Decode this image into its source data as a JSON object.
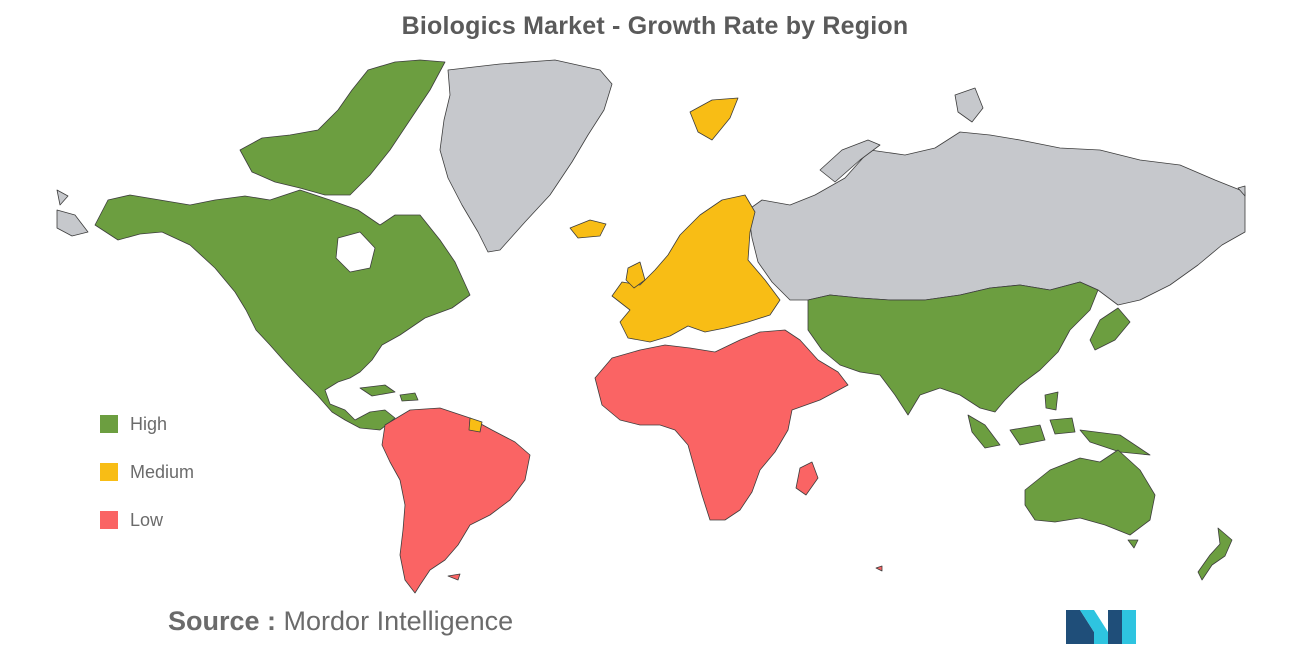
{
  "title": "Biologics Market - Growth Rate by Region",
  "legend": [
    {
      "label": "High",
      "color": "#6c9e40"
    },
    {
      "label": "Medium",
      "color": "#f8bd15"
    },
    {
      "label": "Low",
      "color": "#fa6464"
    }
  ],
  "colors": {
    "no_data": "#c6c8cc",
    "border": "#3d3d3d"
  },
  "source": {
    "prefix": "Source :",
    "name": "Mordor Intelligence"
  },
  "regions": {
    "north_america": "High",
    "south_america": "Low",
    "europe": "Medium",
    "middle_east_africa": "Low",
    "asia_pacific": "High",
    "russia_greenland": "no data"
  },
  "logo": {
    "icon": "mordor-intelligence-logo-icon",
    "colors": [
      "#1f4e79",
      "#2ec4e0"
    ]
  }
}
